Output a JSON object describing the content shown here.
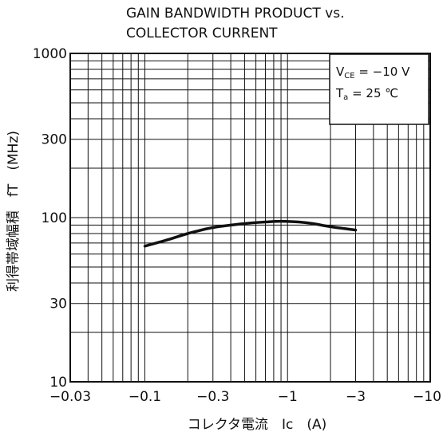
{
  "chart_data": {
    "type": "line",
    "title_lines": [
      "GAIN BANDWIDTH PRODUCT vs.",
      "COLLECTOR CURRENT"
    ],
    "xlabel": "コレクタ電流　Ic　(A)",
    "ylabel": "利得帯域幅積　fT　(MHz)",
    "x_scale": "log",
    "y_scale": "log",
    "xlim": [
      -0.03,
      -10
    ],
    "ylim": [
      10,
      1000
    ],
    "x_ticks": [
      -0.03,
      -0.1,
      -0.3,
      -1,
      -3,
      -10
    ],
    "x_tick_labels": [
      "−0.03",
      "−0.1",
      "−0.3",
      "−1",
      "−3",
      "−10"
    ],
    "y_ticks": [
      10,
      30,
      100,
      300,
      1000
    ],
    "y_tick_labels": [
      "10",
      "30",
      "100",
      "300",
      "1000"
    ],
    "grid": true,
    "conditions": [
      {
        "main": "V",
        "sub": "CE",
        "rest": " = −10 V"
      },
      {
        "main": "T",
        "sub": "a",
        "rest": " = 25 ℃"
      }
    ],
    "conditions_position": "top-right",
    "series": [
      {
        "x": [
          -0.1,
          -0.15,
          -0.2,
          -0.3,
          -0.5,
          -0.7,
          -0.9,
          -1.2,
          -1.5,
          -2,
          -3
        ],
        "y": [
          67,
          74,
          80,
          87,
          92,
          94,
          95,
          94,
          92,
          88,
          84
        ]
      }
    ],
    "colors": {
      "line": "#111111",
      "grid": "#111111",
      "background": "#ffffff"
    }
  }
}
